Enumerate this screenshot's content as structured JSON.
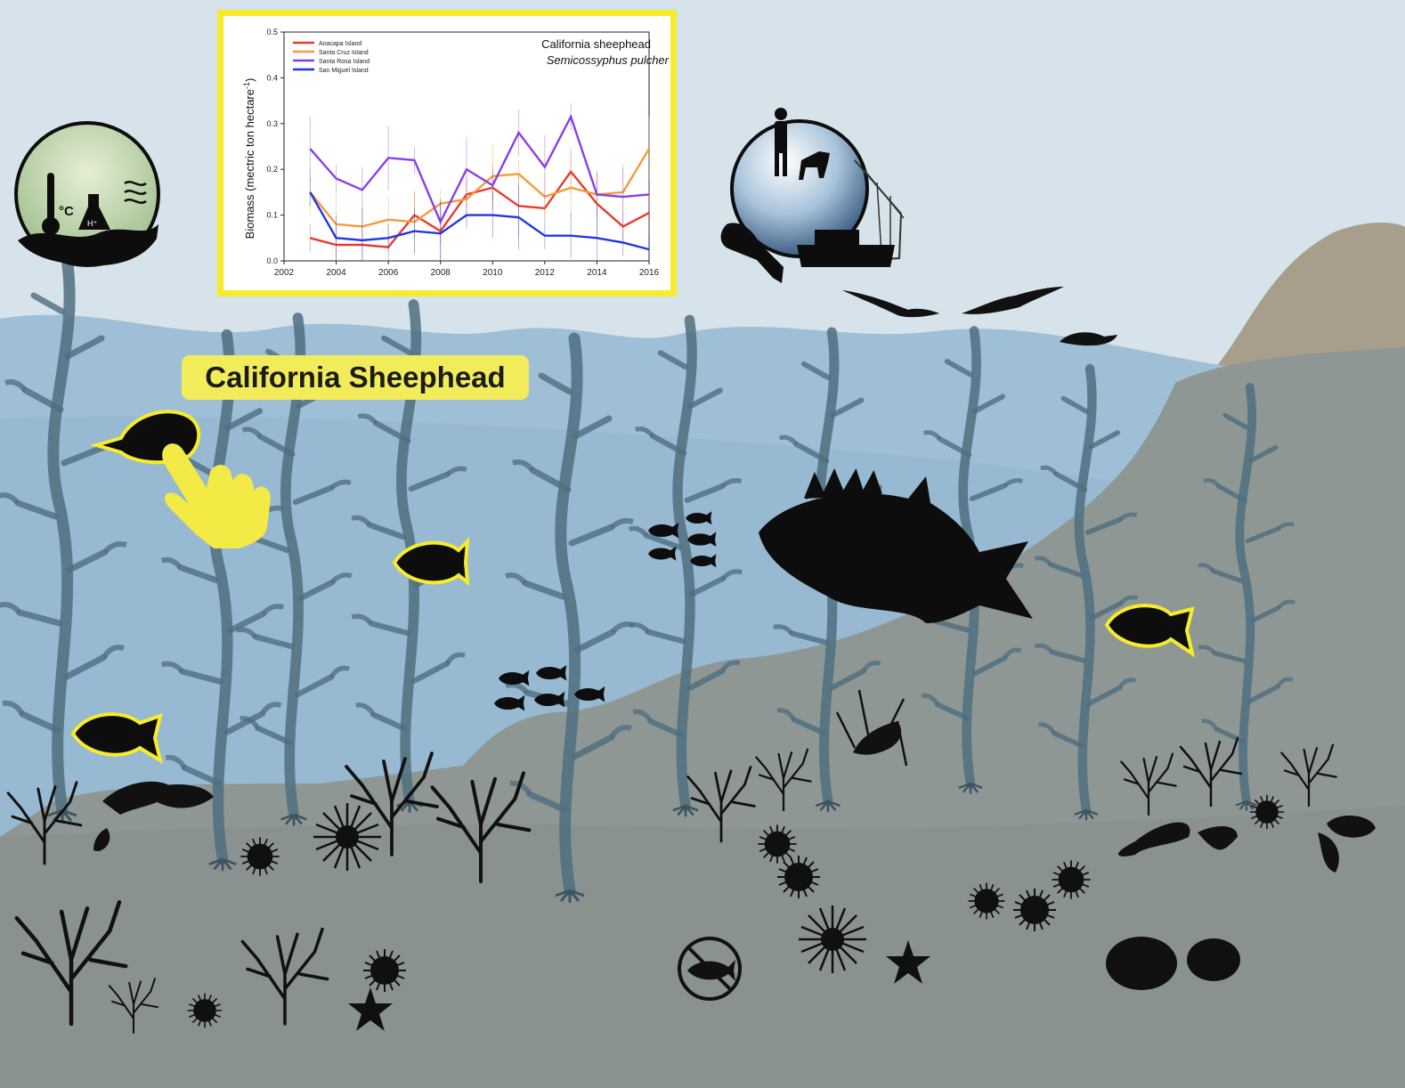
{
  "scene": {
    "species_label": "California Sheephead",
    "icons": [
      "ocean-conditions-icon",
      "human-observer-globe-icon",
      "hand-pointer-icon",
      "no-fishing-icon",
      "sheephead-fish-icon",
      "rockfish-icon",
      "kelp-icon",
      "sea-urchin-icon",
      "sea-star-icon",
      "lobster-icon",
      "abalone-icon",
      "bird-icon"
    ],
    "colors": {
      "sky": "#d6e3ea",
      "water": "#9fbfd6",
      "seafloor": "#8c9592",
      "highlight": "#f7ec2c",
      "silhouette": "#0d0d0d"
    },
    "ocean_icon": {
      "unit": "°C",
      "flask_label": "H⁺"
    }
  },
  "chart_data": {
    "type": "line",
    "title": "California sheephead",
    "subtitle": "Semicossyphus pulcher",
    "xlabel": "",
    "ylabel": "Biomass (mectric ton hectare",
    "ylabel_superscript": "-1",
    "xlim": [
      2002,
      2016
    ],
    "ylim": [
      0,
      0.5
    ],
    "xticks": [
      "2002",
      "2004",
      "2006",
      "2008",
      "2010",
      "2012",
      "2014",
      "2016"
    ],
    "yticks": [
      "0.0",
      "0.1",
      "0.2",
      "0.3",
      "0.4",
      "0.5"
    ],
    "legend_position": "top-left",
    "x": [
      2003,
      2004,
      2005,
      2006,
      2007,
      2008,
      2009,
      2010,
      2011,
      2012,
      2013,
      2014,
      2015,
      2016
    ],
    "series": [
      {
        "name": "Anacapa Island",
        "color": "#e53c2e",
        "values": [
          0.05,
          0.035,
          0.035,
          0.03,
          0.1,
          0.065,
          0.145,
          0.16,
          0.12,
          0.115,
          0.195,
          0.125,
          0.075,
          0.105
        ]
      },
      {
        "name": "Santa Cruz Island",
        "color": "#f39a3b",
        "values": [
          0.15,
          0.08,
          0.075,
          0.09,
          0.085,
          0.125,
          0.135,
          0.185,
          0.19,
          0.14,
          0.16,
          0.145,
          0.15,
          0.245
        ]
      },
      {
        "name": "Santa Rosa Island",
        "color": "#8a3fe6",
        "values": [
          0.245,
          0.18,
          0.155,
          0.225,
          0.22,
          0.085,
          0.2,
          0.165,
          0.28,
          0.205,
          0.315,
          0.145,
          0.14,
          0.145
        ]
      },
      {
        "name": "San Miguel Island",
        "color": "#2337e0",
        "values": [
          0.15,
          0.05,
          0.045,
          0.05,
          0.065,
          0.06,
          0.1,
          0.1,
          0.095,
          0.055,
          0.055,
          0.05,
          0.04,
          0.025
        ]
      }
    ]
  }
}
